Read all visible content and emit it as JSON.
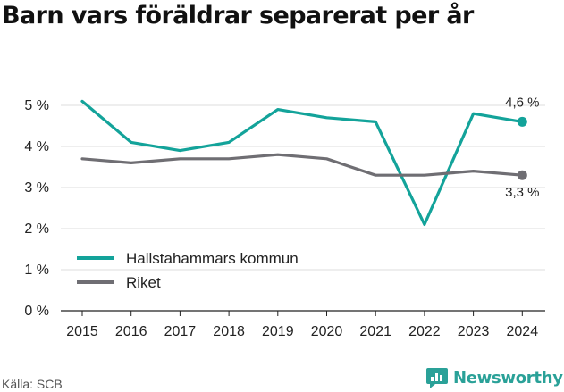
{
  "title": "Barn vars föräldrar separerat per år",
  "source": "Källa: SCB",
  "brand": {
    "name": "Newsworthy",
    "icon": "newsworthy-logo-icon",
    "color": "#2aa198"
  },
  "chart_data": {
    "type": "line",
    "title": "Barn vars föräldrar separerat per år",
    "x": [
      "2015",
      "2016",
      "2017",
      "2018",
      "2019",
      "2020",
      "2021",
      "2022",
      "2023",
      "2024"
    ],
    "ylim": [
      0,
      5
    ],
    "yticks": [
      "0 %",
      "1 %",
      "2 %",
      "3 %",
      "4 %",
      "5 %"
    ],
    "grid": true,
    "legend_position": "bottom-left",
    "series": [
      {
        "name": "Hallstahammars kommun",
        "color": "#13a39a",
        "values": [
          5.1,
          4.1,
          3.9,
          4.1,
          4.9,
          4.7,
          4.6,
          2.1,
          4.8,
          4.6
        ],
        "end_label": "4,6 %"
      },
      {
        "name": "Riket",
        "color": "#6f6e73",
        "values": [
          3.7,
          3.6,
          3.7,
          3.7,
          3.8,
          3.7,
          3.3,
          3.3,
          3.4,
          3.3
        ],
        "end_label": "3,3 %"
      }
    ]
  }
}
